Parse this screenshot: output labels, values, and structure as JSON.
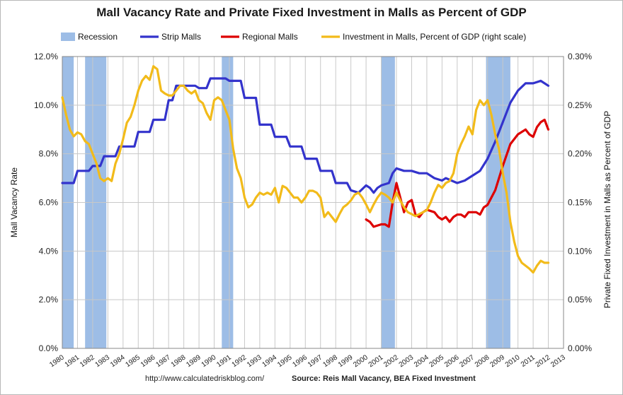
{
  "chart_data": {
    "type": "line",
    "title": "Mall Vacancy Rate and Private Fixed Investment in Malls as Percent of GDP",
    "ylabel_left": "Mall Vacancy Rate",
    "ylabel_right": "Private Fixed Investment in Malls as Percent of GDP",
    "ylim_left": [
      0,
      12
    ],
    "ylim_right": [
      0,
      0.3
    ],
    "yticks_left": [
      "0.0%",
      "2.0%",
      "4.0%",
      "6.0%",
      "8.0%",
      "10.0%",
      "12.0%"
    ],
    "yticks_right": [
      "0.00%",
      "0.05%",
      "0.10%",
      "0.15%",
      "0.20%",
      "0.25%",
      "0.30%"
    ],
    "xlim": [
      1980,
      2013
    ],
    "xticks": [
      "1980",
      "1981",
      "1982",
      "1983",
      "1984",
      "1985",
      "1986",
      "1987",
      "1988",
      "1989",
      "1990",
      "1991",
      "1992",
      "1993",
      "1994",
      "1995",
      "1996",
      "1997",
      "1998",
      "1999",
      "2000",
      "2001",
      "2002",
      "2003",
      "2004",
      "2005",
      "2006",
      "2007",
      "2008",
      "2009",
      "2010",
      "2011",
      "2012",
      "2013"
    ],
    "grid": true,
    "legend_position": "top",
    "recessions": [
      [
        1980.0,
        1980.75
      ],
      [
        1981.5,
        1982.9
      ],
      [
        1990.5,
        1991.25
      ],
      [
        2001.0,
        2001.9
      ],
      [
        2007.9,
        2009.5
      ]
    ],
    "series": [
      {
        "name": "Strip Malls",
        "axis": "left",
        "color": "#3333cc",
        "points": [
          [
            1980.0,
            6.8
          ],
          [
            1980.75,
            6.8
          ],
          [
            1981.0,
            7.3
          ],
          [
            1981.75,
            7.3
          ],
          [
            1982.0,
            7.5
          ],
          [
            1982.5,
            7.5
          ],
          [
            1982.75,
            7.9
          ],
          [
            1983.5,
            7.9
          ],
          [
            1983.75,
            8.3
          ],
          [
            1984.75,
            8.3
          ],
          [
            1985.0,
            8.9
          ],
          [
            1985.75,
            8.9
          ],
          [
            1986.0,
            9.4
          ],
          [
            1986.75,
            9.4
          ],
          [
            1987.0,
            10.2
          ],
          [
            1987.25,
            10.2
          ],
          [
            1987.5,
            10.8
          ],
          [
            1988.75,
            10.8
          ],
          [
            1989.0,
            10.7
          ],
          [
            1989.5,
            10.7
          ],
          [
            1989.75,
            11.1
          ],
          [
            1990.75,
            11.1
          ],
          [
            1991.0,
            11.0
          ],
          [
            1991.75,
            11.0
          ],
          [
            1992.0,
            10.3
          ],
          [
            1992.75,
            10.3
          ],
          [
            1993.0,
            9.2
          ],
          [
            1993.75,
            9.2
          ],
          [
            1994.0,
            8.7
          ],
          [
            1994.75,
            8.7
          ],
          [
            1995.0,
            8.3
          ],
          [
            1995.75,
            8.3
          ],
          [
            1996.0,
            7.8
          ],
          [
            1996.75,
            7.8
          ],
          [
            1997.0,
            7.3
          ],
          [
            1997.75,
            7.3
          ],
          [
            1998.0,
            6.8
          ],
          [
            1998.75,
            6.8
          ],
          [
            1999.0,
            6.5
          ],
          [
            1999.5,
            6.4
          ],
          [
            2000.0,
            6.7
          ],
          [
            2000.25,
            6.6
          ],
          [
            2000.5,
            6.4
          ],
          [
            2000.75,
            6.6
          ],
          [
            2001.0,
            6.7
          ],
          [
            2001.5,
            6.8
          ],
          [
            2001.75,
            7.2
          ],
          [
            2002.0,
            7.4
          ],
          [
            2002.5,
            7.3
          ],
          [
            2003.0,
            7.3
          ],
          [
            2003.5,
            7.2
          ],
          [
            2004.0,
            7.2
          ],
          [
            2004.5,
            7.0
          ],
          [
            2005.0,
            6.9
          ],
          [
            2005.25,
            7.0
          ],
          [
            2006.0,
            6.8
          ],
          [
            2006.5,
            6.9
          ],
          [
            2007.0,
            7.1
          ],
          [
            2007.5,
            7.3
          ],
          [
            2008.0,
            7.8
          ],
          [
            2008.5,
            8.5
          ],
          [
            2009.0,
            9.3
          ],
          [
            2009.5,
            10.1
          ],
          [
            2010.0,
            10.6
          ],
          [
            2010.5,
            10.9
          ],
          [
            2011.0,
            10.9
          ],
          [
            2011.5,
            11.0
          ],
          [
            2012.0,
            10.8
          ]
        ]
      },
      {
        "name": "Regional Malls",
        "axis": "left",
        "color": "#dd0000",
        "points": [
          [
            2000.0,
            5.3
          ],
          [
            2000.25,
            5.2
          ],
          [
            2000.5,
            5.0
          ],
          [
            2001.0,
            5.1
          ],
          [
            2001.25,
            5.1
          ],
          [
            2001.5,
            5.0
          ],
          [
            2001.75,
            6.0
          ],
          [
            2002.0,
            6.8
          ],
          [
            2002.25,
            6.2
          ],
          [
            2002.5,
            5.6
          ],
          [
            2002.75,
            6.0
          ],
          [
            2003.0,
            6.1
          ],
          [
            2003.25,
            5.5
          ],
          [
            2003.5,
            5.4
          ],
          [
            2003.75,
            5.6
          ],
          [
            2004.0,
            5.7
          ],
          [
            2004.5,
            5.6
          ],
          [
            2004.75,
            5.4
          ],
          [
            2005.0,
            5.3
          ],
          [
            2005.25,
            5.4
          ],
          [
            2005.5,
            5.2
          ],
          [
            2005.75,
            5.4
          ],
          [
            2006.0,
            5.5
          ],
          [
            2006.25,
            5.5
          ],
          [
            2006.5,
            5.4
          ],
          [
            2006.75,
            5.6
          ],
          [
            2007.0,
            5.6
          ],
          [
            2007.25,
            5.6
          ],
          [
            2007.5,
            5.5
          ],
          [
            2007.75,
            5.8
          ],
          [
            2008.0,
            5.9
          ],
          [
            2008.5,
            6.5
          ],
          [
            2009.0,
            7.5
          ],
          [
            2009.5,
            8.4
          ],
          [
            2010.0,
            8.8
          ],
          [
            2010.5,
            9.0
          ],
          [
            2010.75,
            8.8
          ],
          [
            2011.0,
            8.7
          ],
          [
            2011.25,
            9.1
          ],
          [
            2011.5,
            9.3
          ],
          [
            2011.75,
            9.4
          ],
          [
            2012.0,
            9.0
          ]
        ]
      },
      {
        "name": "Investment in Malls, Percent of GDP (right scale)",
        "axis": "right",
        "color": "#f2bb1a",
        "points": [
          [
            1980.0,
            0.258
          ],
          [
            1980.25,
            0.24
          ],
          [
            1980.5,
            0.225
          ],
          [
            1980.75,
            0.218
          ],
          [
            1981.0,
            0.222
          ],
          [
            1981.25,
            0.22
          ],
          [
            1981.5,
            0.213
          ],
          [
            1981.75,
            0.21
          ],
          [
            1982.0,
            0.2
          ],
          [
            1982.25,
            0.19
          ],
          [
            1982.5,
            0.175
          ],
          [
            1982.75,
            0.172
          ],
          [
            1983.0,
            0.175
          ],
          [
            1983.25,
            0.172
          ],
          [
            1983.5,
            0.19
          ],
          [
            1983.75,
            0.2
          ],
          [
            1984.0,
            0.215
          ],
          [
            1984.25,
            0.232
          ],
          [
            1984.5,
            0.238
          ],
          [
            1984.75,
            0.25
          ],
          [
            1985.0,
            0.265
          ],
          [
            1985.25,
            0.275
          ],
          [
            1985.5,
            0.28
          ],
          [
            1985.75,
            0.276
          ],
          [
            1986.0,
            0.29
          ],
          [
            1986.25,
            0.287
          ],
          [
            1986.5,
            0.265
          ],
          [
            1986.75,
            0.262
          ],
          [
            1987.0,
            0.26
          ],
          [
            1987.25,
            0.26
          ],
          [
            1987.5,
            0.265
          ],
          [
            1987.75,
            0.27
          ],
          [
            1988.0,
            0.27
          ],
          [
            1988.25,
            0.265
          ],
          [
            1988.5,
            0.262
          ],
          [
            1988.75,
            0.265
          ],
          [
            1989.0,
            0.255
          ],
          [
            1989.25,
            0.252
          ],
          [
            1989.5,
            0.242
          ],
          [
            1989.75,
            0.235
          ],
          [
            1990.0,
            0.255
          ],
          [
            1990.25,
            0.258
          ],
          [
            1990.5,
            0.255
          ],
          [
            1990.75,
            0.245
          ],
          [
            1991.0,
            0.235
          ],
          [
            1991.25,
            0.205
          ],
          [
            1991.5,
            0.185
          ],
          [
            1991.75,
            0.175
          ],
          [
            1992.0,
            0.155
          ],
          [
            1992.25,
            0.145
          ],
          [
            1992.5,
            0.148
          ],
          [
            1992.75,
            0.155
          ],
          [
            1993.0,
            0.16
          ],
          [
            1993.25,
            0.158
          ],
          [
            1993.5,
            0.16
          ],
          [
            1993.75,
            0.158
          ],
          [
            1994.0,
            0.165
          ],
          [
            1994.25,
            0.15
          ],
          [
            1994.5,
            0.167
          ],
          [
            1994.75,
            0.165
          ],
          [
            1995.0,
            0.16
          ],
          [
            1995.25,
            0.155
          ],
          [
            1995.5,
            0.155
          ],
          [
            1995.75,
            0.15
          ],
          [
            1996.0,
            0.155
          ],
          [
            1996.25,
            0.162
          ],
          [
            1996.5,
            0.162
          ],
          [
            1996.75,
            0.16
          ],
          [
            1997.0,
            0.155
          ],
          [
            1997.25,
            0.135
          ],
          [
            1997.5,
            0.14
          ],
          [
            1997.75,
            0.135
          ],
          [
            1998.0,
            0.13
          ],
          [
            1998.25,
            0.138
          ],
          [
            1998.5,
            0.145
          ],
          [
            1998.75,
            0.148
          ],
          [
            1999.0,
            0.152
          ],
          [
            1999.25,
            0.158
          ],
          [
            1999.5,
            0.16
          ],
          [
            1999.75,
            0.155
          ],
          [
            2000.0,
            0.148
          ],
          [
            2000.25,
            0.14
          ],
          [
            2000.5,
            0.148
          ],
          [
            2000.75,
            0.155
          ],
          [
            2001.0,
            0.16
          ],
          [
            2001.25,
            0.158
          ],
          [
            2001.5,
            0.155
          ],
          [
            2001.75,
            0.15
          ],
          [
            2002.0,
            0.16
          ],
          [
            2002.25,
            0.152
          ],
          [
            2002.5,
            0.145
          ],
          [
            2002.75,
            0.14
          ],
          [
            2003.0,
            0.138
          ],
          [
            2003.25,
            0.136
          ],
          [
            2003.5,
            0.138
          ],
          [
            2003.75,
            0.14
          ],
          [
            2004.0,
            0.142
          ],
          [
            2004.25,
            0.15
          ],
          [
            2004.5,
            0.16
          ],
          [
            2004.75,
            0.168
          ],
          [
            2005.0,
            0.165
          ],
          [
            2005.25,
            0.17
          ],
          [
            2005.5,
            0.172
          ],
          [
            2005.75,
            0.18
          ],
          [
            2006.0,
            0.2
          ],
          [
            2006.25,
            0.21
          ],
          [
            2006.5,
            0.218
          ],
          [
            2006.75,
            0.228
          ],
          [
            2007.0,
            0.22
          ],
          [
            2007.25,
            0.245
          ],
          [
            2007.5,
            0.255
          ],
          [
            2007.75,
            0.25
          ],
          [
            2008.0,
            0.255
          ],
          [
            2008.25,
            0.24
          ],
          [
            2008.5,
            0.22
          ],
          [
            2008.75,
            0.205
          ],
          [
            2009.0,
            0.18
          ],
          [
            2009.25,
            0.16
          ],
          [
            2009.5,
            0.13
          ],
          [
            2009.75,
            0.11
          ],
          [
            2010.0,
            0.095
          ],
          [
            2010.25,
            0.088
          ],
          [
            2010.5,
            0.085
          ],
          [
            2010.75,
            0.082
          ],
          [
            2011.0,
            0.078
          ],
          [
            2011.25,
            0.085
          ],
          [
            2011.5,
            0.09
          ],
          [
            2011.75,
            0.088
          ],
          [
            2012.0,
            0.088
          ]
        ]
      }
    ],
    "legend": [
      {
        "label": "Recession",
        "kind": "box",
        "color": "#9dbde6"
      },
      {
        "label": "Strip Malls",
        "kind": "line",
        "color": "#3333cc"
      },
      {
        "label": "Regional Malls",
        "kind": "line",
        "color": "#dd0000"
      },
      {
        "label": "Investment in Malls, Percent of GDP (right scale)",
        "kind": "line",
        "color": "#f2bb1a"
      }
    ]
  },
  "footer": {
    "url": "http://www.calculatedriskblog.com/",
    "source": "Source: Reis Mall Vacancy, BEA Fixed Investment"
  }
}
